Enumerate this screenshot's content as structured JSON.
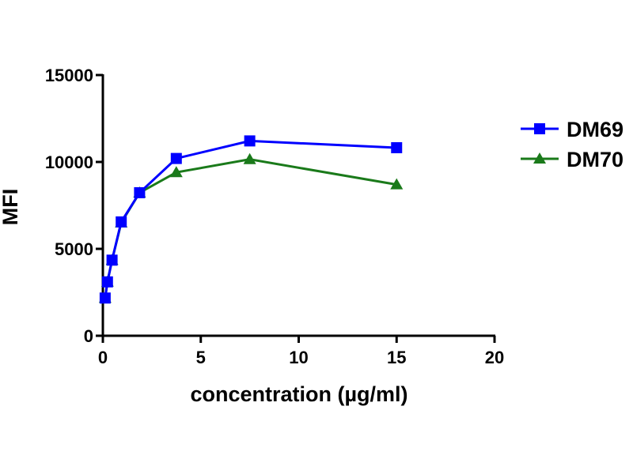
{
  "chart_data": {
    "type": "line",
    "title": "",
    "xlabel": "concentration (µg/ml)",
    "ylabel": "MFI",
    "xlim": [
      0,
      20
    ],
    "ylim": [
      0,
      15000
    ],
    "xticks": [
      0,
      5,
      10,
      15,
      20
    ],
    "yticks": [
      0,
      5000,
      10000,
      15000
    ],
    "legend_position": "right",
    "grid": false,
    "series": [
      {
        "name": "DM69",
        "color": "#0000ff",
        "marker": "square",
        "x": [
          0.117,
          0.234,
          0.469,
          0.9375,
          1.875,
          3.75,
          7.5,
          15
        ],
        "y": [
          2170,
          3100,
          4350,
          6550,
          8230,
          10200,
          11210,
          10820
        ]
      },
      {
        "name": "DM70",
        "color": "#1a7a1a",
        "marker": "triangle",
        "x": [
          0.117,
          0.234,
          0.469,
          0.9375,
          1.875,
          3.75,
          7.5,
          15
        ],
        "y": [
          2170,
          3100,
          4350,
          6500,
          8230,
          9400,
          10150,
          8700
        ]
      }
    ]
  }
}
